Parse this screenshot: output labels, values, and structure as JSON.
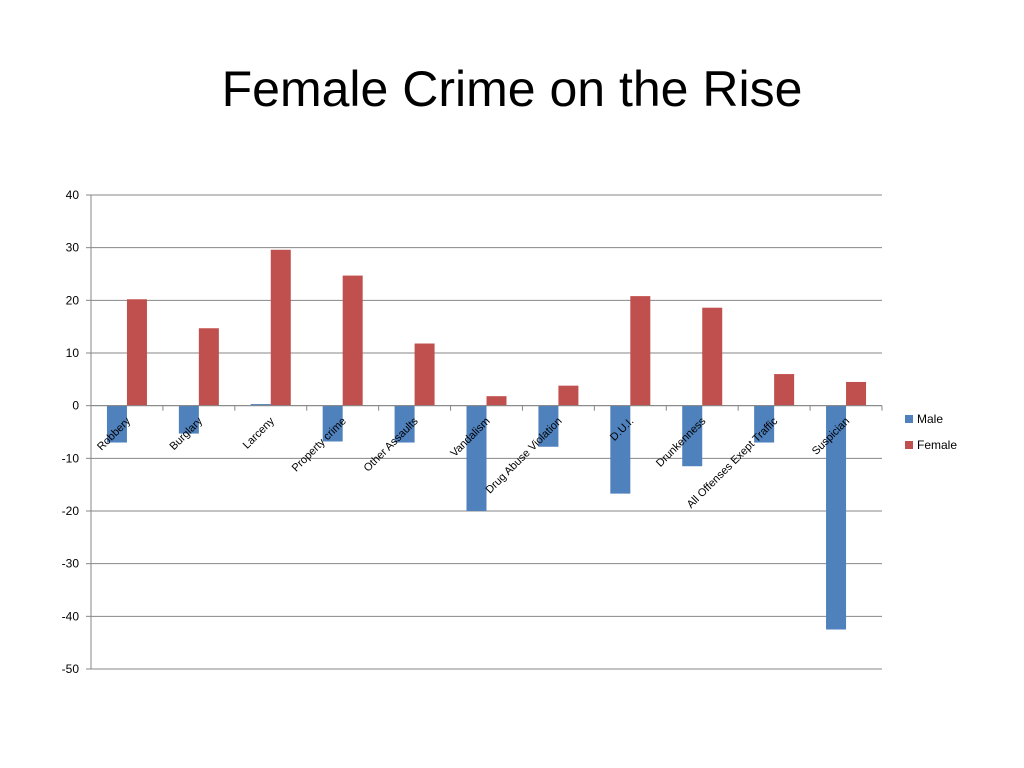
{
  "slide": {
    "title": "Female Crime on the Rise"
  },
  "chart_data": {
    "type": "bar",
    "categories": [
      "Robbery",
      "Burglary",
      "Larceny",
      "Property crime",
      "Other Assaults",
      "Vandalism",
      "Drug Abuse Violation",
      "D.U.I.",
      "Drunkenness",
      "All Offenses Exept Traffic",
      "Suspician"
    ],
    "series": [
      {
        "name": "Male",
        "color": "#4F81BD",
        "values": [
          -7,
          -5.3,
          0.3,
          -6.8,
          -7,
          -20,
          -7.8,
          -16.7,
          -11.5,
          -7,
          -42.5
        ]
      },
      {
        "name": "Female",
        "color": "#C0504D",
        "values": [
          20.2,
          14.7,
          29.6,
          24.7,
          11.8,
          1.8,
          3.8,
          20.8,
          18.6,
          6,
          4.5
        ]
      }
    ],
    "ylim": [
      -50,
      40
    ],
    "yticks": [
      40,
      30,
      20,
      10,
      0,
      -10,
      -20,
      -30,
      -40,
      -50
    ],
    "grid": true,
    "legend": "right"
  }
}
